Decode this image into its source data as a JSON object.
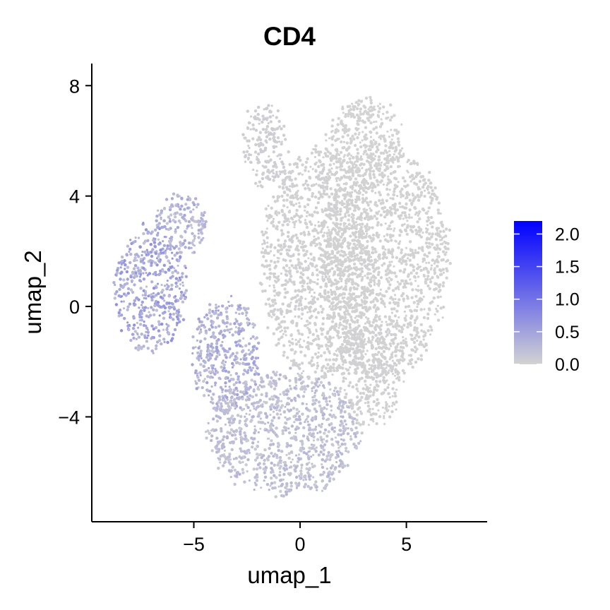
{
  "chart_data": {
    "type": "scatter",
    "title": "CD4",
    "xlabel": "umap_1",
    "ylabel": "umap_2",
    "xlim": [
      -9.8,
      8.8
    ],
    "ylim": [
      -7.8,
      8.8
    ],
    "x_ticks": [
      {
        "value": -5,
        "label": "−5"
      },
      {
        "value": 0,
        "label": "0"
      },
      {
        "value": 5,
        "label": "5"
      }
    ],
    "y_ticks": [
      {
        "value": 8,
        "label": "8"
      },
      {
        "value": 4,
        "label": "4"
      },
      {
        "value": 0,
        "label": "0"
      },
      {
        "value": -4,
        "label": "−4"
      }
    ],
    "grid": false,
    "color_scale": {
      "low_color": "#d3d3d3",
      "high_color": "#0000ff",
      "min": 0.0,
      "max": 2.2,
      "ticks": [
        {
          "value": 2.0,
          "label": "2.0"
        },
        {
          "value": 1.5,
          "label": "1.5"
        },
        {
          "value": 1.0,
          "label": "1.0"
        },
        {
          "value": 0.5,
          "label": "0.5"
        },
        {
          "value": 0.0,
          "label": "0.0"
        }
      ],
      "legend_position": "right"
    },
    "regions": [
      {
        "name": "left-cluster",
        "center": [
          -7.0,
          0.6
        ],
        "radius": [
          1.7,
          2.3
        ],
        "expression": 0.45
      },
      {
        "name": "left-upper-arm",
        "center": [
          -5.6,
          3.0
        ],
        "radius": [
          1.2,
          1.1
        ],
        "expression": 0.3
      },
      {
        "name": "mid-left-cluster",
        "center": [
          -3.5,
          -1.8
        ],
        "radius": [
          1.6,
          2.1
        ],
        "expression": 0.35
      },
      {
        "name": "bottom-cluster",
        "center": [
          -0.8,
          -4.6
        ],
        "radius": [
          3.6,
          2.2
        ],
        "expression": 0.2
      },
      {
        "name": "central-mass",
        "center": [
          0.8,
          1.5
        ],
        "radius": [
          2.6,
          4.2
        ],
        "expression": 0.02
      },
      {
        "name": "right-mass",
        "center": [
          4.0,
          1.6
        ],
        "radius": [
          3.0,
          4.2
        ],
        "expression": 0.01
      },
      {
        "name": "top-right-lobe",
        "center": [
          3.0,
          6.0
        ],
        "radius": [
          1.8,
          1.5
        ],
        "expression": 0.0
      },
      {
        "name": "top-left-lobe",
        "center": [
          -1.7,
          5.8
        ],
        "radius": [
          1.0,
          1.5
        ],
        "expression": 0.05
      },
      {
        "name": "right-lower-tail",
        "center": [
          3.4,
          -2.4
        ],
        "radius": [
          1.5,
          2.0
        ],
        "expression": 0.02
      }
    ]
  }
}
